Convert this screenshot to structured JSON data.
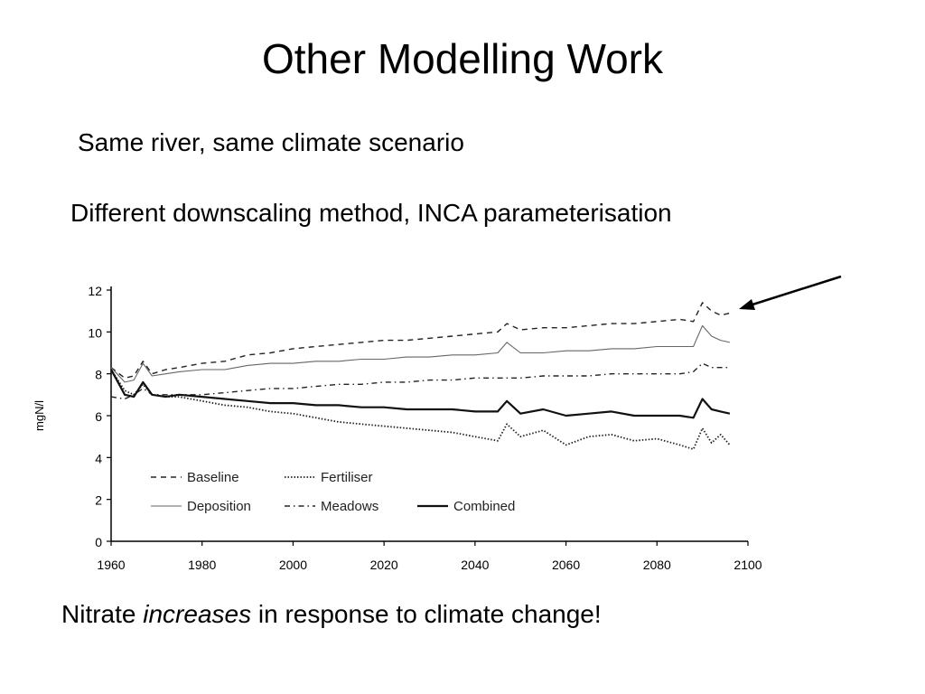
{
  "slide": {
    "title": "Other Modelling Work",
    "line1": "Same river, same climate scenario",
    "line2": "Different downscaling method, INCA parameterisation",
    "footer": {
      "pre": "Nitrate ",
      "emph": "increases",
      "post": " in response to climate change!"
    }
  },
  "chart_data": {
    "type": "line",
    "title": "",
    "xlabel": "",
    "ylabel": "mgN/l",
    "xlim": [
      1960,
      2100
    ],
    "ylim": [
      0,
      12
    ],
    "xticks": [
      1960,
      1980,
      2000,
      2020,
      2040,
      2060,
      2080,
      2100
    ],
    "yticks": [
      0,
      2,
      4,
      6,
      8,
      10,
      12
    ],
    "grid": false,
    "legend": "bottom-left, inside plot",
    "annotation": "arrow pointing to the end of the Baseline series",
    "x": [
      1960,
      1963,
      1965,
      1967,
      1969,
      1972,
      1975,
      1980,
      1985,
      1990,
      1995,
      2000,
      2005,
      2010,
      2015,
      2020,
      2025,
      2030,
      2035,
      2040,
      2045,
      2047,
      2050,
      2055,
      2060,
      2065,
      2070,
      2075,
      2080,
      2085,
      2088,
      2090,
      2092,
      2094,
      2096
    ],
    "series": [
      {
        "name": "Baseline",
        "style": "dashed",
        "values": [
          8.3,
          7.8,
          7.9,
          8.6,
          8.0,
          8.2,
          8.3,
          8.5,
          8.6,
          8.9,
          9.0,
          9.2,
          9.3,
          9.4,
          9.5,
          9.6,
          9.6,
          9.7,
          9.8,
          9.9,
          10.0,
          10.4,
          10.1,
          10.2,
          10.2,
          10.3,
          10.4,
          10.4,
          10.5,
          10.6,
          10.5,
          11.4,
          11.0,
          10.8,
          10.9
        ]
      },
      {
        "name": "Fertiliser",
        "style": "dotted",
        "values": [
          8.2,
          7.2,
          7.0,
          7.5,
          7.0,
          6.9,
          6.9,
          6.7,
          6.5,
          6.4,
          6.2,
          6.1,
          5.9,
          5.7,
          5.6,
          5.5,
          5.4,
          5.3,
          5.2,
          5.0,
          4.8,
          5.6,
          5.0,
          5.3,
          4.6,
          5.0,
          5.1,
          4.8,
          4.9,
          4.6,
          4.4,
          5.4,
          4.7,
          5.1,
          4.6
        ]
      },
      {
        "name": "Deposition",
        "style": "solid-thin",
        "values": [
          8.3,
          7.6,
          7.7,
          8.5,
          7.9,
          8.0,
          8.1,
          8.2,
          8.2,
          8.4,
          8.5,
          8.5,
          8.6,
          8.6,
          8.7,
          8.7,
          8.8,
          8.8,
          8.9,
          8.9,
          9.0,
          9.5,
          9.0,
          9.0,
          9.1,
          9.1,
          9.2,
          9.2,
          9.3,
          9.3,
          9.3,
          10.3,
          9.8,
          9.6,
          9.5
        ]
      },
      {
        "name": "Meadows",
        "style": "dash-dot",
        "values": [
          6.9,
          6.8,
          7.0,
          7.3,
          7.0,
          7.0,
          7.0,
          7.0,
          7.1,
          7.2,
          7.3,
          7.3,
          7.4,
          7.5,
          7.5,
          7.6,
          7.6,
          7.7,
          7.7,
          7.8,
          7.8,
          7.8,
          7.8,
          7.9,
          7.9,
          7.9,
          8.0,
          8.0,
          8.0,
          8.0,
          8.1,
          8.5,
          8.3,
          8.3,
          8.3
        ]
      },
      {
        "name": "Combined",
        "style": "solid-thick",
        "values": [
          8.2,
          7.0,
          6.9,
          7.6,
          7.0,
          6.9,
          7.0,
          6.9,
          6.8,
          6.7,
          6.6,
          6.6,
          6.5,
          6.5,
          6.4,
          6.4,
          6.3,
          6.3,
          6.3,
          6.2,
          6.2,
          6.7,
          6.1,
          6.3,
          6.0,
          6.1,
          6.2,
          6.0,
          6.0,
          6.0,
          5.9,
          6.8,
          6.3,
          6.2,
          6.1
        ]
      }
    ]
  }
}
